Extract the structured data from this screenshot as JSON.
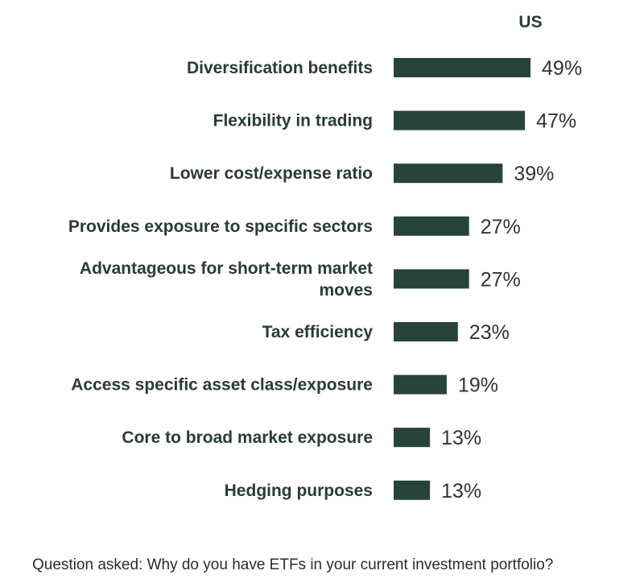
{
  "chart_data": {
    "type": "bar",
    "orientation": "horizontal",
    "series_name": "US",
    "categories": [
      [
        "Diversification benefits"
      ],
      [
        "Flexibility in trading"
      ],
      [
        "Lower cost/expense ratio"
      ],
      [
        "Provides exposure to specific sectors"
      ],
      [
        "Advantageous for short-term market",
        "moves"
      ],
      [
        "Tax efficiency"
      ],
      [
        "Access specific asset class/exposure"
      ],
      [
        "Core to broad market exposure"
      ],
      [
        "Hedging purposes"
      ]
    ],
    "values": [
      49,
      47,
      39,
      27,
      27,
      23,
      19,
      13,
      13
    ],
    "value_labels": [
      "49%",
      "47%",
      "39%",
      "27%",
      "27%",
      "23%",
      "19%",
      "13%",
      "13%"
    ],
    "unit": "%",
    "xlim": [
      0,
      100
    ],
    "legend": "top",
    "grid": false
  },
  "colors": {
    "bar": "#27443a",
    "label": "#2a3b33",
    "value": "#333333"
  },
  "footnote": "Question asked: Why do you have ETFs in your current investment portfolio?"
}
